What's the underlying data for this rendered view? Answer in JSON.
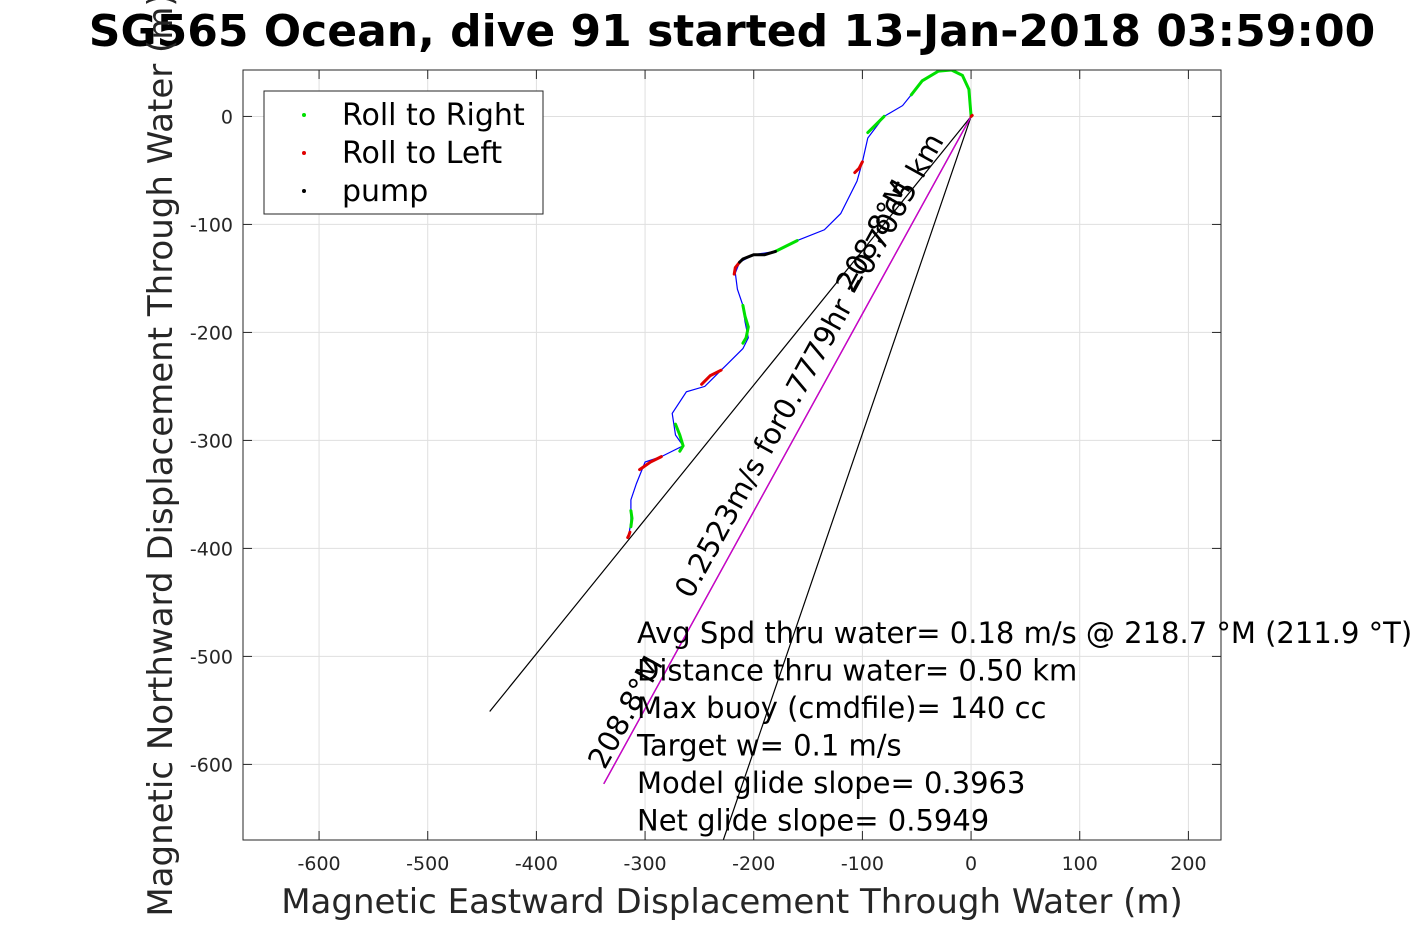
{
  "chart_data": {
    "type": "line",
    "title": "SG565 Ocean, dive 91 started 13-Jan-2018 03:59:00",
    "xlabel": "Magnetic Eastward Displacement Through Water (m)",
    "ylabel": "Magnetic Northward Displacement Through Water (m)",
    "xlim": [
      -670,
      230
    ],
    "ylim": [
      -670,
      43
    ],
    "xticks": [
      -600,
      -500,
      -400,
      -300,
      -200,
      -100,
      0,
      100,
      200
    ],
    "yticks": [
      0,
      -100,
      -200,
      -300,
      -400,
      -500,
      -600
    ],
    "grid": true,
    "legend": {
      "placement": "top-left",
      "entries": [
        {
          "label": "Roll to Right",
          "color": "#00e000"
        },
        {
          "label": "Roll to Left",
          "color": "#e00000"
        },
        {
          "label": "pump",
          "color": "#000000"
        }
      ]
    },
    "track": {
      "color": "#0000ff",
      "x": [
        0,
        -2,
        -8,
        -18,
        -30,
        -45,
        -55,
        -63,
        -80,
        -95,
        -100,
        -105,
        -120,
        -135,
        -160,
        -180,
        -200,
        -213,
        -217,
        -215,
        -210,
        -208,
        -205,
        -210,
        -225,
        -230,
        -245,
        -262,
        -275,
        -272,
        -265,
        -285,
        -300,
        -308,
        -313,
        -313,
        -315
      ],
      "y": [
        0,
        25,
        38,
        43,
        42,
        33,
        20,
        10,
        0,
        -20,
        -42,
        -60,
        -90,
        -105,
        -115,
        -125,
        -128,
        -135,
        -145,
        -160,
        -175,
        -190,
        -205,
        -215,
        -230,
        -235,
        -250,
        -255,
        -275,
        -295,
        -305,
        -315,
        -320,
        -340,
        -355,
        -375,
        -388
      ]
    },
    "roll_right_segments": [
      {
        "x": [
          0,
          -2,
          -8,
          -18,
          -30,
          -45,
          -55
        ],
        "y": [
          0,
          25,
          38,
          43,
          42,
          33,
          20
        ]
      },
      {
        "x": [
          -80,
          -88,
          -95
        ],
        "y": [
          0,
          -8,
          -15
        ]
      },
      {
        "x": [
          -160,
          -170,
          -180
        ],
        "y": [
          -115,
          -120,
          -125
        ]
      },
      {
        "x": [
          -210,
          -208,
          -205,
          -207,
          -210
        ],
        "y": [
          -175,
          -185,
          -195,
          -205,
          -210
        ]
      },
      {
        "x": [
          -272,
          -268,
          -265,
          -268
        ],
        "y": [
          -285,
          -295,
          -305,
          -310
        ]
      },
      {
        "x": [
          -313,
          -312,
          -313
        ],
        "y": [
          -365,
          -372,
          -380
        ]
      }
    ],
    "roll_left_segments": [
      {
        "x": [
          -100,
          -103,
          -107
        ],
        "y": [
          -42,
          -48,
          -52
        ]
      },
      {
        "x": [
          -213,
          -217,
          -218
        ],
        "y": [
          -135,
          -140,
          -146
        ]
      },
      {
        "x": [
          -230,
          -240,
          -248
        ],
        "y": [
          -235,
          -240,
          -248
        ]
      },
      {
        "x": [
          -285,
          -295,
          -305
        ],
        "y": [
          -315,
          -320,
          -327
        ]
      },
      {
        "x": [
          -314,
          -315,
          -316
        ],
        "y": [
          -385,
          -388,
          -390
        ]
      },
      {
        "x": [
          0,
          1
        ],
        "y": [
          0,
          1
        ]
      }
    ],
    "pump_segments": [
      {
        "x": [
          -180,
          -190,
          -200,
          -210,
          -213
        ],
        "y": [
          -125,
          -128,
          -128,
          -132,
          -135
        ]
      }
    ],
    "reference_lines": [
      {
        "color": "#000000",
        "x": [
          0,
          -443
        ],
        "y": [
          0,
          -551
        ]
      },
      {
        "color": "#000000",
        "x": [
          0,
          -228
        ],
        "y": [
          0,
          -670
        ]
      },
      {
        "color": "#000000",
        "x": [
          0,
          -338
        ],
        "y": [
          0,
          -618
        ]
      },
      {
        "color": "#cc00cc",
        "x": [
          0,
          -338
        ],
        "y": [
          0,
          -618
        ]
      }
    ],
    "rotated_labels": [
      {
        "text": "0.2523m/s for0.7779hr =0.7065 km",
        "x": -141,
        "y": -235
      },
      {
        "text": "208.8°M",
        "x": -82,
        "y": -115
      },
      {
        "text": "208.8°M",
        "x": -310,
        "y": -556
      }
    ],
    "annotation_lines": [
      "Avg Spd thru water=  0.18 m/s @ 218.7 °M (211.9 °T)",
      "Distance thru water=  0.50 km",
      "Max buoy (cmdfile)= 140 cc",
      "Target w= 0.1 m/s",
      "Model glide slope= 0.3963",
      "Net glide slope= 0.5949"
    ]
  }
}
